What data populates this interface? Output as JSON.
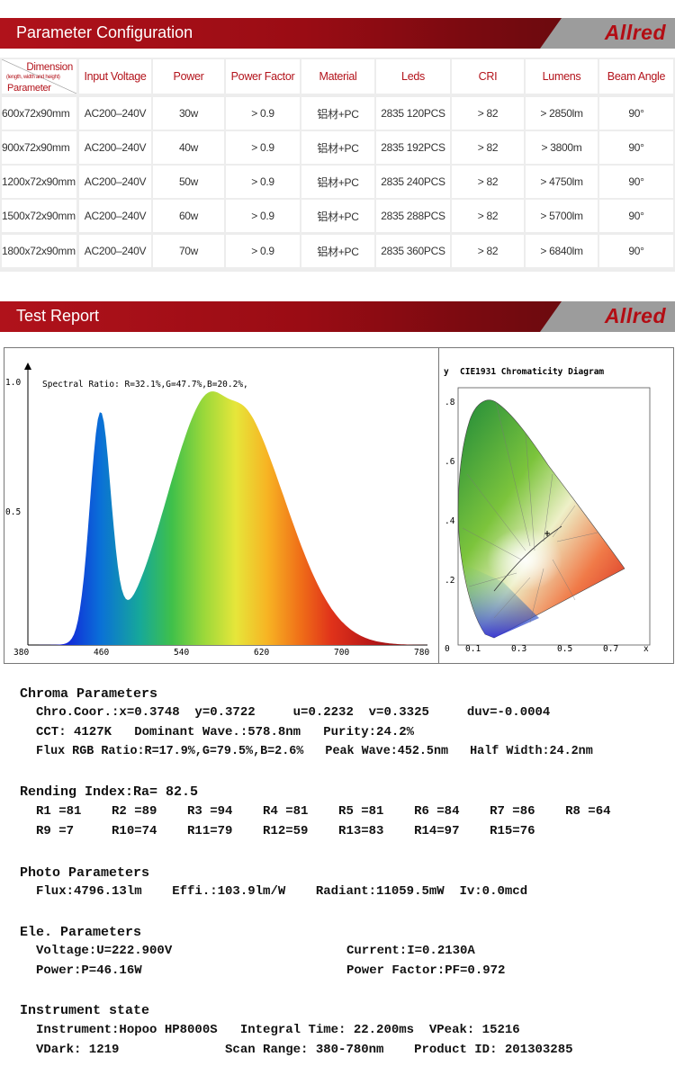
{
  "banner1": {
    "title": "Parameter Configuration",
    "logo": "Allred"
  },
  "banner2": {
    "title": "Test Report",
    "logo": "Allred"
  },
  "table": {
    "corner": {
      "top": "Dimension",
      "sub": "(length, width and height)",
      "bottom": "Parameter"
    },
    "headers": [
      "Input Voltage",
      "Power",
      "Power Factor",
      "Material",
      "Leds",
      "CRI",
      "Lumens",
      "Beam Angle"
    ],
    "rows": [
      [
        "600x72x90mm",
        "AC200–240V",
        "30w",
        "> 0.9",
        "铝材+PC",
        "2835  120PCS",
        "> 82",
        "> 2850lm",
        "90°"
      ],
      [
        "900x72x90mm",
        "AC200–240V",
        "40w",
        "> 0.9",
        "铝材+PC",
        "2835  192PCS",
        "> 82",
        "> 3800m",
        "90°"
      ],
      [
        "1200x72x90mm",
        "AC200–240V",
        "50w",
        "> 0.9",
        "铝材+PC",
        "2835  240PCS",
        "> 82",
        "> 4750lm",
        "90°"
      ],
      [
        "1500x72x90mm",
        "AC200–240V",
        "60w",
        "> 0.9",
        "铝材+PC",
        "2835  288PCS",
        "> 82",
        "> 5700lm",
        "90°"
      ],
      [
        "1800x72x90mm",
        "AC200–240V",
        "70w",
        "> 0.9",
        "铝材+PC",
        "2835  360PCS",
        "> 82",
        "> 6840lm",
        "90°"
      ]
    ]
  },
  "spectrum": {
    "caption": "Spectral Ratio:  R=32.1%,G=47.7%,B=20.2%,",
    "y_ticks": [
      "1.0",
      "0.5"
    ],
    "x_ticks": [
      "380",
      "460",
      "540",
      "620",
      "700",
      "780"
    ]
  },
  "cie": {
    "title": "CIE1931 Chromaticity Diagram",
    "y_axis": "y",
    "x_axis": "x",
    "y_ticks": [
      ".8",
      ".6",
      ".4",
      ".2",
      "0"
    ],
    "x_ticks": [
      "0.1",
      "0.3",
      "0.5",
      "0.7"
    ]
  },
  "report": {
    "chroma_title": "Chroma Parameters",
    "chroma_1": "Chro.Coor.:x=0.3748  y=0.3722     u=0.2232  v=0.3325     duv=-0.0004",
    "chroma_2": "CCT: 4127K   Dominant Wave.:578.8nm   Purity:24.2%",
    "chroma_3": "Flux RGB Ratio:R=17.9%,G=79.5%,B=2.6%   Peak Wave:452.5nm   Half Width:24.2nm",
    "rending_title": "Rending Index:Ra= 82.5",
    "rending_1": "R1 =81    R2 =89    R3 =94    R4 =81    R5 =81    R6 =84    R7 =86    R8 =64",
    "rending_2": "R9 =7     R10=74    R11=79    R12=59    R13=83    R14=97    R15=76",
    "photo_title": "Photo Parameters",
    "photo_1": "Flux:4796.13lm    Effi.:103.9lm/W    Radiant:11059.5mW  Iv:0.0mcd",
    "ele_title": "Ele. Parameters",
    "ele_voltage": "Voltage:U=222.900V",
    "ele_current": "Current:I=0.2130A",
    "ele_power": "Power:P=46.16W",
    "ele_pf": "Power Factor:PF=0.972",
    "inst_title": "Instrument state",
    "inst_1": "Instrument:Hopoo HP8000S   Integral Time: 22.200ms  VPeak: 15216",
    "inst_2": "VDark: 1219              Scan Range: 380-780nm    Product ID: 201303285"
  }
}
